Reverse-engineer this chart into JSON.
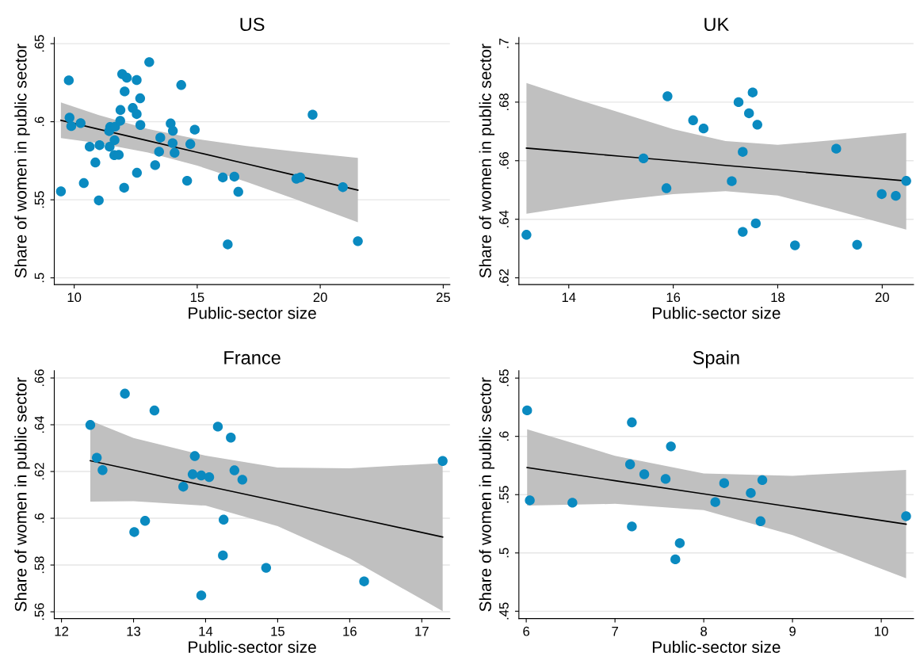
{
  "chart_data": [
    {
      "type": "scatter",
      "title": "US",
      "xlabel": "Public-sector size",
      "ylabel": "Share of women in public sector",
      "xlim": [
        9.19,
        25.27
      ],
      "ylim": [
        0.4957,
        0.654
      ],
      "xticks": [
        10,
        15,
        20,
        25
      ],
      "yticks": [
        {
          "value": 0.5,
          "label": ".5"
        },
        {
          "value": 0.55,
          "label": ".55"
        },
        {
          "value": 0.6,
          "label": ".6"
        },
        {
          "value": 0.65,
          "label": ".65"
        }
      ],
      "grid": "y",
      "marker": "circle",
      "legend": false,
      "series": [
        {
          "color": "#0a8ac0",
          "x": [
            9.46,
            9.78,
            9.81,
            9.88,
            10.26,
            10.39,
            10.63,
            10.86,
            11.0,
            11.03,
            11.44,
            11.46,
            11.42,
            11.64,
            11.63,
            11.66,
            11.81,
            11.87,
            11.88,
            11.95,
            12.05,
            12.14,
            12.03,
            12.38,
            12.54,
            12.54,
            12.55,
            12.68,
            12.69,
            13.05,
            13.29,
            13.45,
            13.5,
            13.92,
            14.01,
            14.0,
            14.08,
            14.35,
            14.59,
            14.72,
            14.9,
            16.04,
            16.24,
            16.51,
            16.67,
            19.03,
            19.19,
            19.69,
            20.92,
            21.53
          ],
          "values": [
            0.5554,
            0.6265,
            0.6026,
            0.5972,
            0.5991,
            0.5607,
            0.584,
            0.5739,
            0.5496,
            0.585,
            0.584,
            0.5966,
            0.594,
            0.5882,
            0.5786,
            0.5968,
            0.5788,
            0.6006,
            0.6075,
            0.6305,
            0.6194,
            0.6282,
            0.5577,
            0.6088,
            0.6049,
            0.6267,
            0.5673,
            0.615,
            0.5979,
            0.6382,
            0.5722,
            0.5808,
            0.5898,
            0.5989,
            0.5942,
            0.5863,
            0.5801,
            0.6235,
            0.5622,
            0.5857,
            0.5949,
            0.5643,
            0.5214,
            0.5648,
            0.5551,
            0.5635,
            0.5643,
            0.6045,
            0.5581,
            0.5235
          ]
        },
        {
          "type": "line",
          "color": "#000000",
          "marker": "none",
          "x": [
            9.46,
            11,
            13,
            15,
            17,
            19,
            21.53
          ],
          "values": [
            0.6009,
            0.5952,
            0.5878,
            0.5804,
            0.573,
            0.5656,
            0.5562
          ],
          "lower": [
            0.5895,
            0.5862,
            0.5803,
            0.5719,
            0.5615,
            0.5503,
            0.5356
          ],
          "upper": [
            0.6123,
            0.6042,
            0.5953,
            0.5889,
            0.5845,
            0.5809,
            0.5768
          ]
        }
      ]
    },
    {
      "type": "scatter",
      "title": "UK",
      "xlabel": "Public-sector size",
      "ylabel": "Share of women in public sector",
      "xlim": [
        13.045,
        20.6
      ],
      "ylim": [
        0.6177,
        0.7021
      ],
      "xticks": [
        14,
        16,
        18,
        20
      ],
      "yticks": [
        {
          "value": 0.62,
          "label": ".62"
        },
        {
          "value": 0.64,
          "label": ".64"
        },
        {
          "value": 0.66,
          "label": ".66"
        },
        {
          "value": 0.68,
          "label": ".68"
        },
        {
          "value": 0.7,
          "label": ".7"
        }
      ],
      "grid": "y",
      "marker": "circle",
      "legend": false,
      "series": [
        {
          "color": "#0a8ac0",
          "x": [
            13.19,
            15.43,
            15.89,
            15.87,
            16.38,
            16.58,
            17.12,
            17.25,
            17.33,
            17.33,
            17.45,
            17.52,
            17.61,
            17.58,
            18.33,
            19.12,
            19.52,
            19.99,
            20.26,
            20.46
          ],
          "values": [
            0.6347,
            0.6608,
            0.682,
            0.6506,
            0.6738,
            0.671,
            0.653,
            0.68,
            0.663,
            0.6357,
            0.6762,
            0.6833,
            0.6723,
            0.6386,
            0.6311,
            0.6641,
            0.6313,
            0.6486,
            0.648,
            0.6531
          ]
        },
        {
          "type": "line",
          "color": "#000000",
          "marker": "none",
          "x": [
            13.19,
            14,
            15,
            16,
            17,
            18,
            19,
            20.46
          ],
          "values": [
            0.6643,
            0.6631,
            0.6615,
            0.66,
            0.6584,
            0.6569,
            0.6553,
            0.6531
          ],
          "lower": [
            0.6419,
            0.6441,
            0.6466,
            0.6486,
            0.6496,
            0.6481,
            0.6436,
            0.6365
          ],
          "upper": [
            0.6865,
            0.6818,
            0.6763,
            0.6708,
            0.6667,
            0.6654,
            0.6669,
            0.6695
          ]
        }
      ]
    },
    {
      "type": "scatter",
      "title": "France",
      "xlabel": "Public-sector size",
      "ylabel": "Share of women in public sector",
      "xlim": [
        11.9,
        17.39
      ],
      "ylim": [
        0.5571,
        0.6631
      ],
      "xticks": [
        12,
        13,
        14,
        15,
        16,
        17
      ],
      "yticks": [
        {
          "value": 0.56,
          "label": ".56"
        },
        {
          "value": 0.58,
          "label": ".58"
        },
        {
          "value": 0.6,
          "label": ".6"
        },
        {
          "value": 0.62,
          "label": ".62"
        },
        {
          "value": 0.64,
          "label": ".64"
        },
        {
          "value": 0.66,
          "label": ".66"
        }
      ],
      "grid": "y",
      "marker": "circle",
      "legend": false,
      "series": [
        {
          "color": "#0a8ac0",
          "x": [
            12.4,
            12.49,
            12.57,
            12.88,
            13.01,
            13.16,
            13.29,
            13.69,
            13.82,
            13.85,
            13.94,
            13.94,
            14.05,
            14.17,
            14.25,
            14.24,
            14.35,
            14.4,
            14.51,
            14.84,
            16.2,
            17.29
          ],
          "values": [
            0.6399,
            0.6259,
            0.6206,
            0.6533,
            0.5941,
            0.5989,
            0.6461,
            0.6135,
            0.6188,
            0.6266,
            0.6183,
            0.567,
            0.6176,
            0.6392,
            0.5994,
            0.5841,
            0.6345,
            0.6205,
            0.6165,
            0.5788,
            0.573,
            0.6245
          ]
        },
        {
          "type": "line",
          "color": "#000000",
          "marker": "none",
          "x": [
            12.4,
            13,
            14,
            15,
            16,
            17.29
          ],
          "values": [
            0.6246,
            0.6206,
            0.6139,
            0.6073,
            0.6006,
            0.592
          ],
          "lower": [
            0.6071,
            0.6073,
            0.6054,
            0.5966,
            0.5828,
            0.5603
          ],
          "upper": [
            0.6418,
            0.6343,
            0.6268,
            0.6217,
            0.6214,
            0.6236
          ]
        }
      ]
    },
    {
      "type": "scatter",
      "title": "Spain",
      "xlabel": "Public-sector size",
      "ylabel": "Share of women in public sector",
      "xlim": [
        5.917,
        10.364
      ],
      "ylim": [
        0.4437,
        0.6563
      ],
      "xticks": [
        6,
        7,
        8,
        9,
        10
      ],
      "yticks": [
        {
          "value": 0.45,
          "label": ".45"
        },
        {
          "value": 0.5,
          "label": ".5"
        },
        {
          "value": 0.55,
          "label": ".55"
        },
        {
          "value": 0.6,
          "label": ".6"
        },
        {
          "value": 0.65,
          "label": ".65"
        }
      ],
      "grid": "y",
      "marker": "circle",
      "legend": false,
      "series": [
        {
          "color": "#0a8ac0",
          "x": [
            6.01,
            6.04,
            6.52,
            7.17,
            7.19,
            7.19,
            7.33,
            7.57,
            7.63,
            7.73,
            7.68,
            8.13,
            8.23,
            8.53,
            8.66,
            8.64,
            10.28
          ],
          "values": [
            0.6223,
            0.5451,
            0.5431,
            0.576,
            0.612,
            0.5227,
            0.5675,
            0.5635,
            0.5914,
            0.5084,
            0.4945,
            0.5436,
            0.5599,
            0.5514,
            0.5625,
            0.5272,
            0.5315
          ]
        },
        {
          "type": "line",
          "color": "#000000",
          "marker": "none",
          "x": [
            6.01,
            7,
            8,
            9,
            10.28
          ],
          "values": [
            0.5733,
            0.562,
            0.5507,
            0.5393,
            0.5247
          ],
          "lower": [
            0.5406,
            0.5421,
            0.5368,
            0.5154,
            0.4782
          ],
          "upper": [
            0.606,
            0.5833,
            0.5682,
            0.5662,
            0.5713
          ]
        }
      ]
    }
  ]
}
